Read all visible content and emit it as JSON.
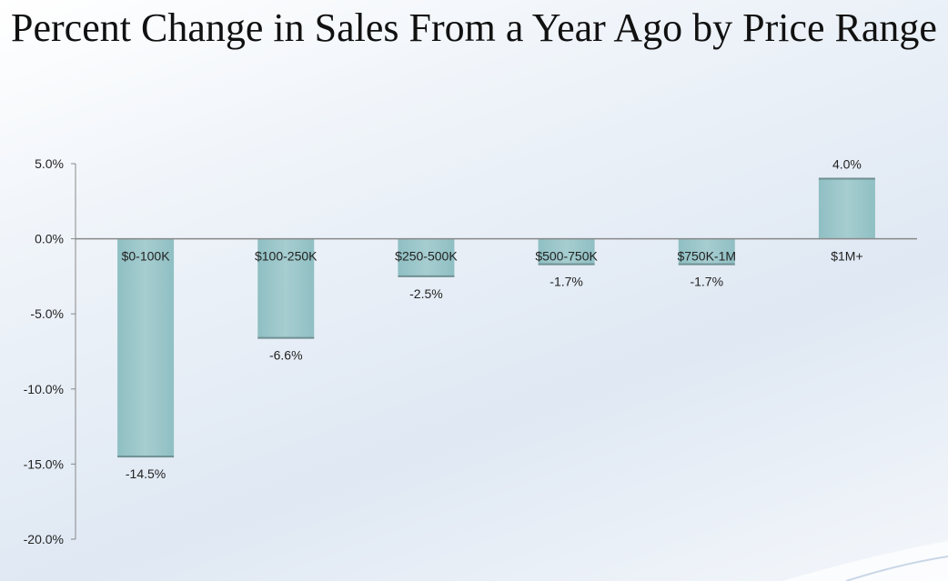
{
  "chart_data": {
    "type": "bar",
    "title": "Percent Change in Sales From a Year Ago by Price Range",
    "categories": [
      "$0-100K",
      "$100-250K",
      "$250-500K",
      "$500-750K",
      "$750K-1M",
      "$1M+"
    ],
    "values": [
      -14.5,
      -6.6,
      -2.5,
      -1.7,
      -1.7,
      4.0
    ],
    "value_labels": [
      "-14.5%",
      "-6.6%",
      "-2.5%",
      "-1.7%",
      "-1.7%",
      "4.0%"
    ],
    "ylim": [
      -20,
      5
    ],
    "yticks": [
      5,
      0,
      -5,
      -10,
      -15,
      -20
    ],
    "ytick_labels": [
      "5.0%",
      "0.0%",
      "-5.0%",
      "-10.0%",
      "-15.0%",
      "-20.0%"
    ],
    "xlabel": "",
    "ylabel": "",
    "grid": false,
    "bar_color": "#a6cdd0"
  }
}
